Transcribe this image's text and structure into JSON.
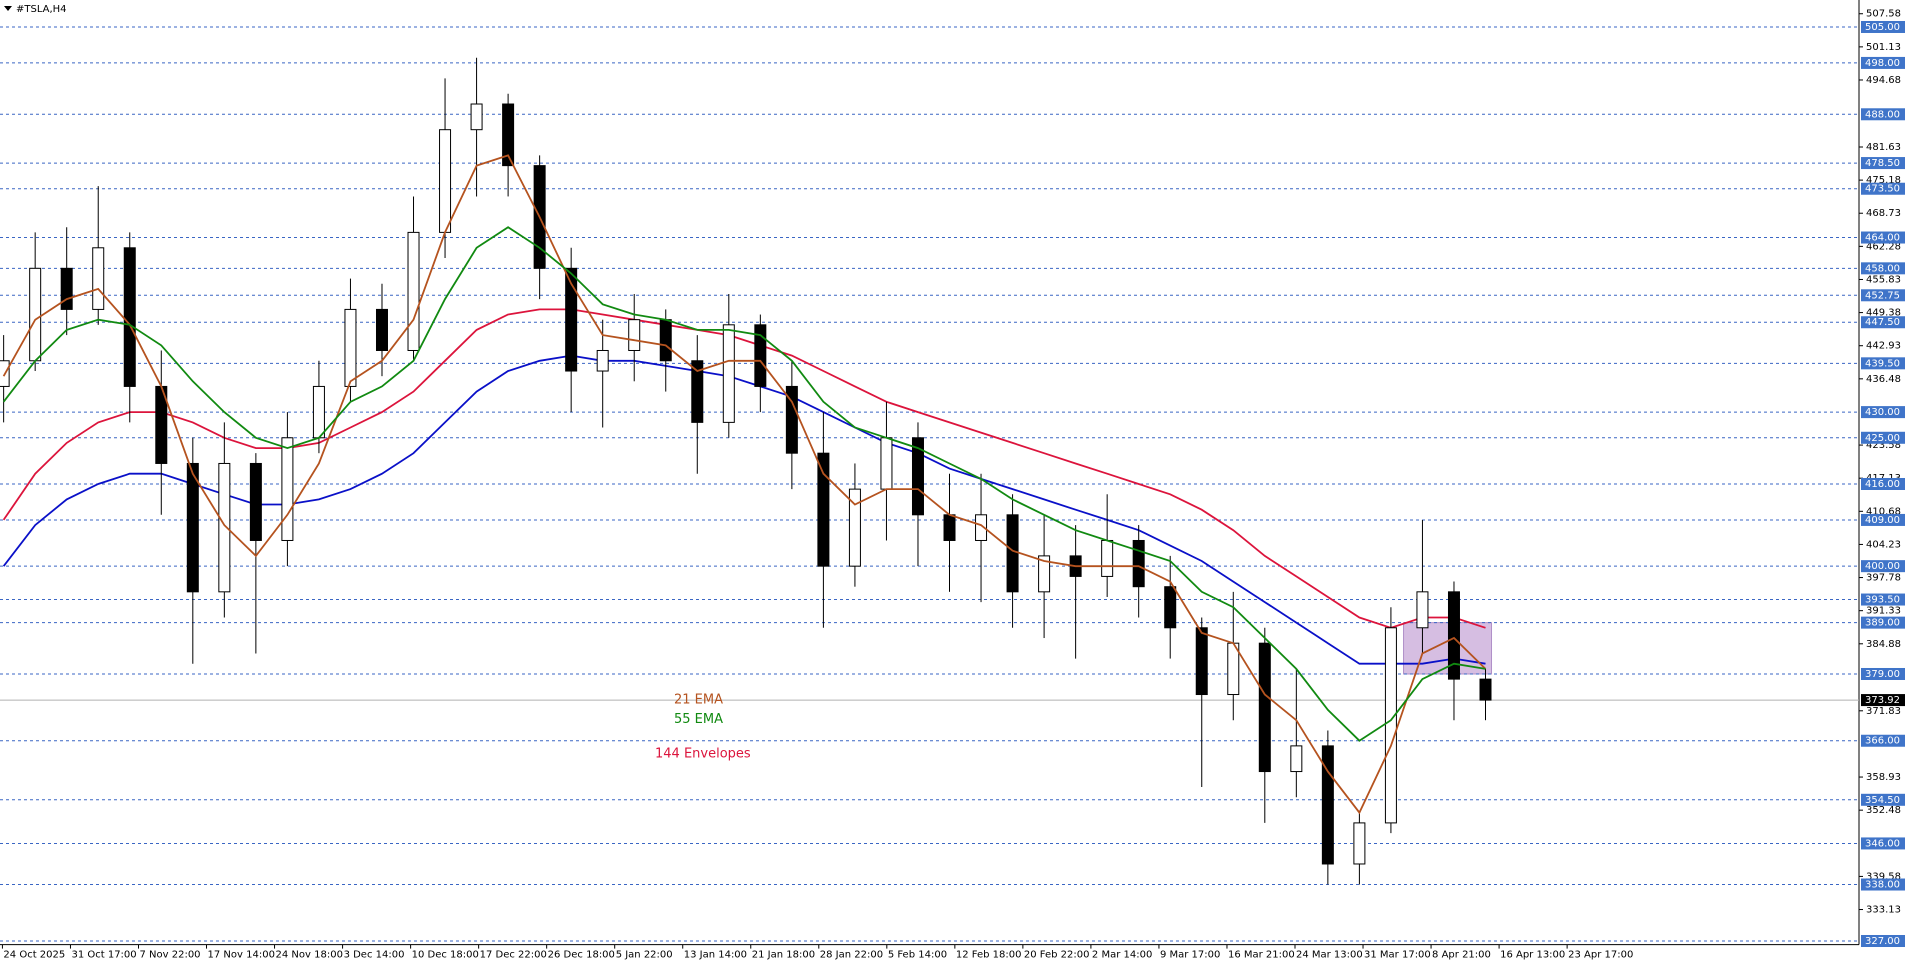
{
  "chart_data": {
    "type": "candlestick",
    "title": "#TSLA,H4",
    "x_labels": [
      "24 Oct 2025",
      "31 Oct 17:00",
      "7 Nov 22:00",
      "17 Nov 14:00",
      "24 Nov 18:00",
      "3 Dec 14:00",
      "10 Dec 18:00",
      "17 Dec 22:00",
      "26 Dec 18:00",
      "5 Jan 22:00",
      "13 Jan 14:00",
      "21 Jan 18:00",
      "28 Jan 22:00",
      "5 Feb 14:00",
      "12 Feb 18:00",
      "20 Feb 22:00",
      "2 Mar 14:00",
      "9 Mar 17:00",
      "16 Mar 21:00",
      "24 Mar 13:00",
      "31 Mar 17:00",
      "8 Apr 21:00",
      "16 Apr 13:00",
      "23 Apr 17:00"
    ],
    "candles": {
      "open": [
        435,
        440,
        458,
        450,
        462,
        435,
        420,
        395,
        420,
        405,
        425,
        435,
        450,
        442,
        465,
        485,
        490,
        478,
        458,
        438,
        442,
        448,
        440,
        428,
        447,
        435,
        422,
        400,
        415,
        425,
        410,
        405,
        410,
        395,
        402,
        398,
        405,
        396,
        388,
        375,
        385,
        360,
        365,
        342,
        350,
        388,
        395,
        378
      ],
      "high": [
        445,
        465,
        466,
        474,
        465,
        442,
        425,
        428,
        422,
        430,
        440,
        456,
        455,
        472,
        495,
        499,
        492,
        480,
        462,
        448,
        453,
        450,
        445,
        453,
        449,
        440,
        430,
        420,
        432,
        428,
        418,
        418,
        414,
        410,
        408,
        414,
        408,
        402,
        390,
        395,
        388,
        380,
        368,
        352,
        392,
        409,
        397,
        380
      ],
      "low": [
        428,
        438,
        445,
        447,
        428,
        410,
        381,
        390,
        383,
        400,
        422,
        432,
        437,
        440,
        460,
        472,
        472,
        452,
        430,
        427,
        436,
        434,
        418,
        425,
        430,
        415,
        388,
        396,
        405,
        400,
        395,
        393,
        388,
        386,
        382,
        394,
        390,
        382,
        357,
        370,
        350,
        355,
        338,
        338,
        348,
        383,
        370,
        370
      ],
      "close": [
        440,
        458,
        450,
        462,
        435,
        420,
        395,
        420,
        405,
        425,
        435,
        450,
        442,
        465,
        485,
        490,
        478,
        458,
        438,
        442,
        448,
        440,
        428,
        447,
        435,
        422,
        400,
        415,
        425,
        410,
        405,
        410,
        395,
        402,
        398,
        405,
        396,
        388,
        375,
        385,
        360,
        365,
        342,
        350,
        388,
        395,
        378,
        373.92
      ]
    },
    "series": [
      {
        "name": "21 EMA",
        "color": "#b5531f",
        "values": [
          437,
          448,
          452,
          454,
          447,
          435,
          418,
          408,
          402,
          410,
          420,
          436,
          440,
          448,
          465,
          478,
          480,
          468,
          455,
          445,
          444,
          443,
          438,
          440,
          440,
          432,
          418,
          412,
          415,
          415,
          410,
          408,
          403,
          401,
          400,
          400,
          400,
          397,
          387,
          385,
          375,
          370,
          360,
          352,
          365,
          383,
          386,
          380
        ]
      },
      {
        "name": "55 EMA",
        "color": "#118a11",
        "values": [
          432,
          440,
          446,
          448,
          447,
          443,
          436,
          430,
          425,
          423,
          425,
          432,
          435,
          440,
          452,
          462,
          466,
          462,
          457,
          451,
          449,
          448,
          446,
          446,
          445,
          440,
          432,
          427,
          425,
          423,
          420,
          417,
          413,
          410,
          407,
          405,
          403,
          401,
          395,
          392,
          386,
          380,
          372,
          366,
          370,
          378,
          381,
          380
        ]
      }
    ],
    "envelopes": {
      "name": "144 Envelopes",
      "upper_color": "#dc143c",
      "lower_color": "#0a10c8",
      "upper": [
        409,
        418,
        424,
        428,
        430,
        430,
        428,
        425,
        423,
        423,
        424,
        427,
        430,
        434,
        440,
        446,
        449,
        450,
        450,
        449,
        448,
        447,
        446,
        445,
        443,
        441,
        438,
        435,
        432,
        430,
        428,
        426,
        424,
        422,
        420,
        418,
        416,
        414,
        411,
        407,
        402,
        398,
        394,
        390,
        388,
        390,
        390,
        388
      ],
      "lower": [
        400,
        408,
        413,
        416,
        418,
        418,
        416,
        414,
        412,
        412,
        413,
        415,
        418,
        422,
        428,
        434,
        438,
        440,
        441,
        440,
        440,
        439,
        438,
        437,
        435,
        433,
        430,
        427,
        424,
        422,
        419,
        417,
        415,
        413,
        411,
        409,
        407,
        404,
        401,
        397,
        393,
        389,
        385,
        381,
        381,
        381,
        382,
        381
      ]
    },
    "zone": {
      "low": 379,
      "high": 389,
      "color": "#c8a8d8"
    },
    "ylim": [
      326.3,
      509.3
    ],
    "yticks": [
      507.58,
      501.13,
      494.68,
      481.63,
      475.18,
      468.73,
      462.28,
      455.83,
      449.38,
      442.93,
      436.48,
      423.58,
      417.13,
      410.68,
      404.23,
      397.78,
      391.33,
      384.88,
      371.83,
      358.93,
      352.48,
      339.58,
      333.13
    ],
    "levels": [
      {
        "value": 505,
        "label": "505.00"
      },
      {
        "value": 498,
        "label": "498.00"
      },
      {
        "value": 488,
        "label": "488.00"
      },
      {
        "value": 478.5,
        "label": "478.50"
      },
      {
        "value": 473.5,
        "label": "473.50"
      },
      {
        "value": 464,
        "label": "464.00"
      },
      {
        "value": 458,
        "label": "458.00"
      },
      {
        "value": 452.75,
        "label": "452.75"
      },
      {
        "value": 447.5,
        "label": "447.50"
      },
      {
        "value": 439.5,
        "label": "439.50"
      },
      {
        "value": 430,
        "label": "430.00"
      },
      {
        "value": 425,
        "label": "425.00"
      },
      {
        "value": 416,
        "label": "416.00"
      },
      {
        "value": 409,
        "label": "409.00"
      },
      {
        "value": 400,
        "label": "400.00"
      },
      {
        "value": 393.5,
        "label": "393.50"
      },
      {
        "value": 389,
        "label": "389.00"
      },
      {
        "value": 379,
        "label": "379.00"
      },
      {
        "value": 366,
        "label": "366.00"
      },
      {
        "value": 354.5,
        "label": "354.50"
      },
      {
        "value": 346,
        "label": "346.00"
      },
      {
        "value": 338,
        "label": "338.00"
      },
      {
        "value": 327,
        "label": "327.00"
      }
    ],
    "current_price": 373.92
  }
}
